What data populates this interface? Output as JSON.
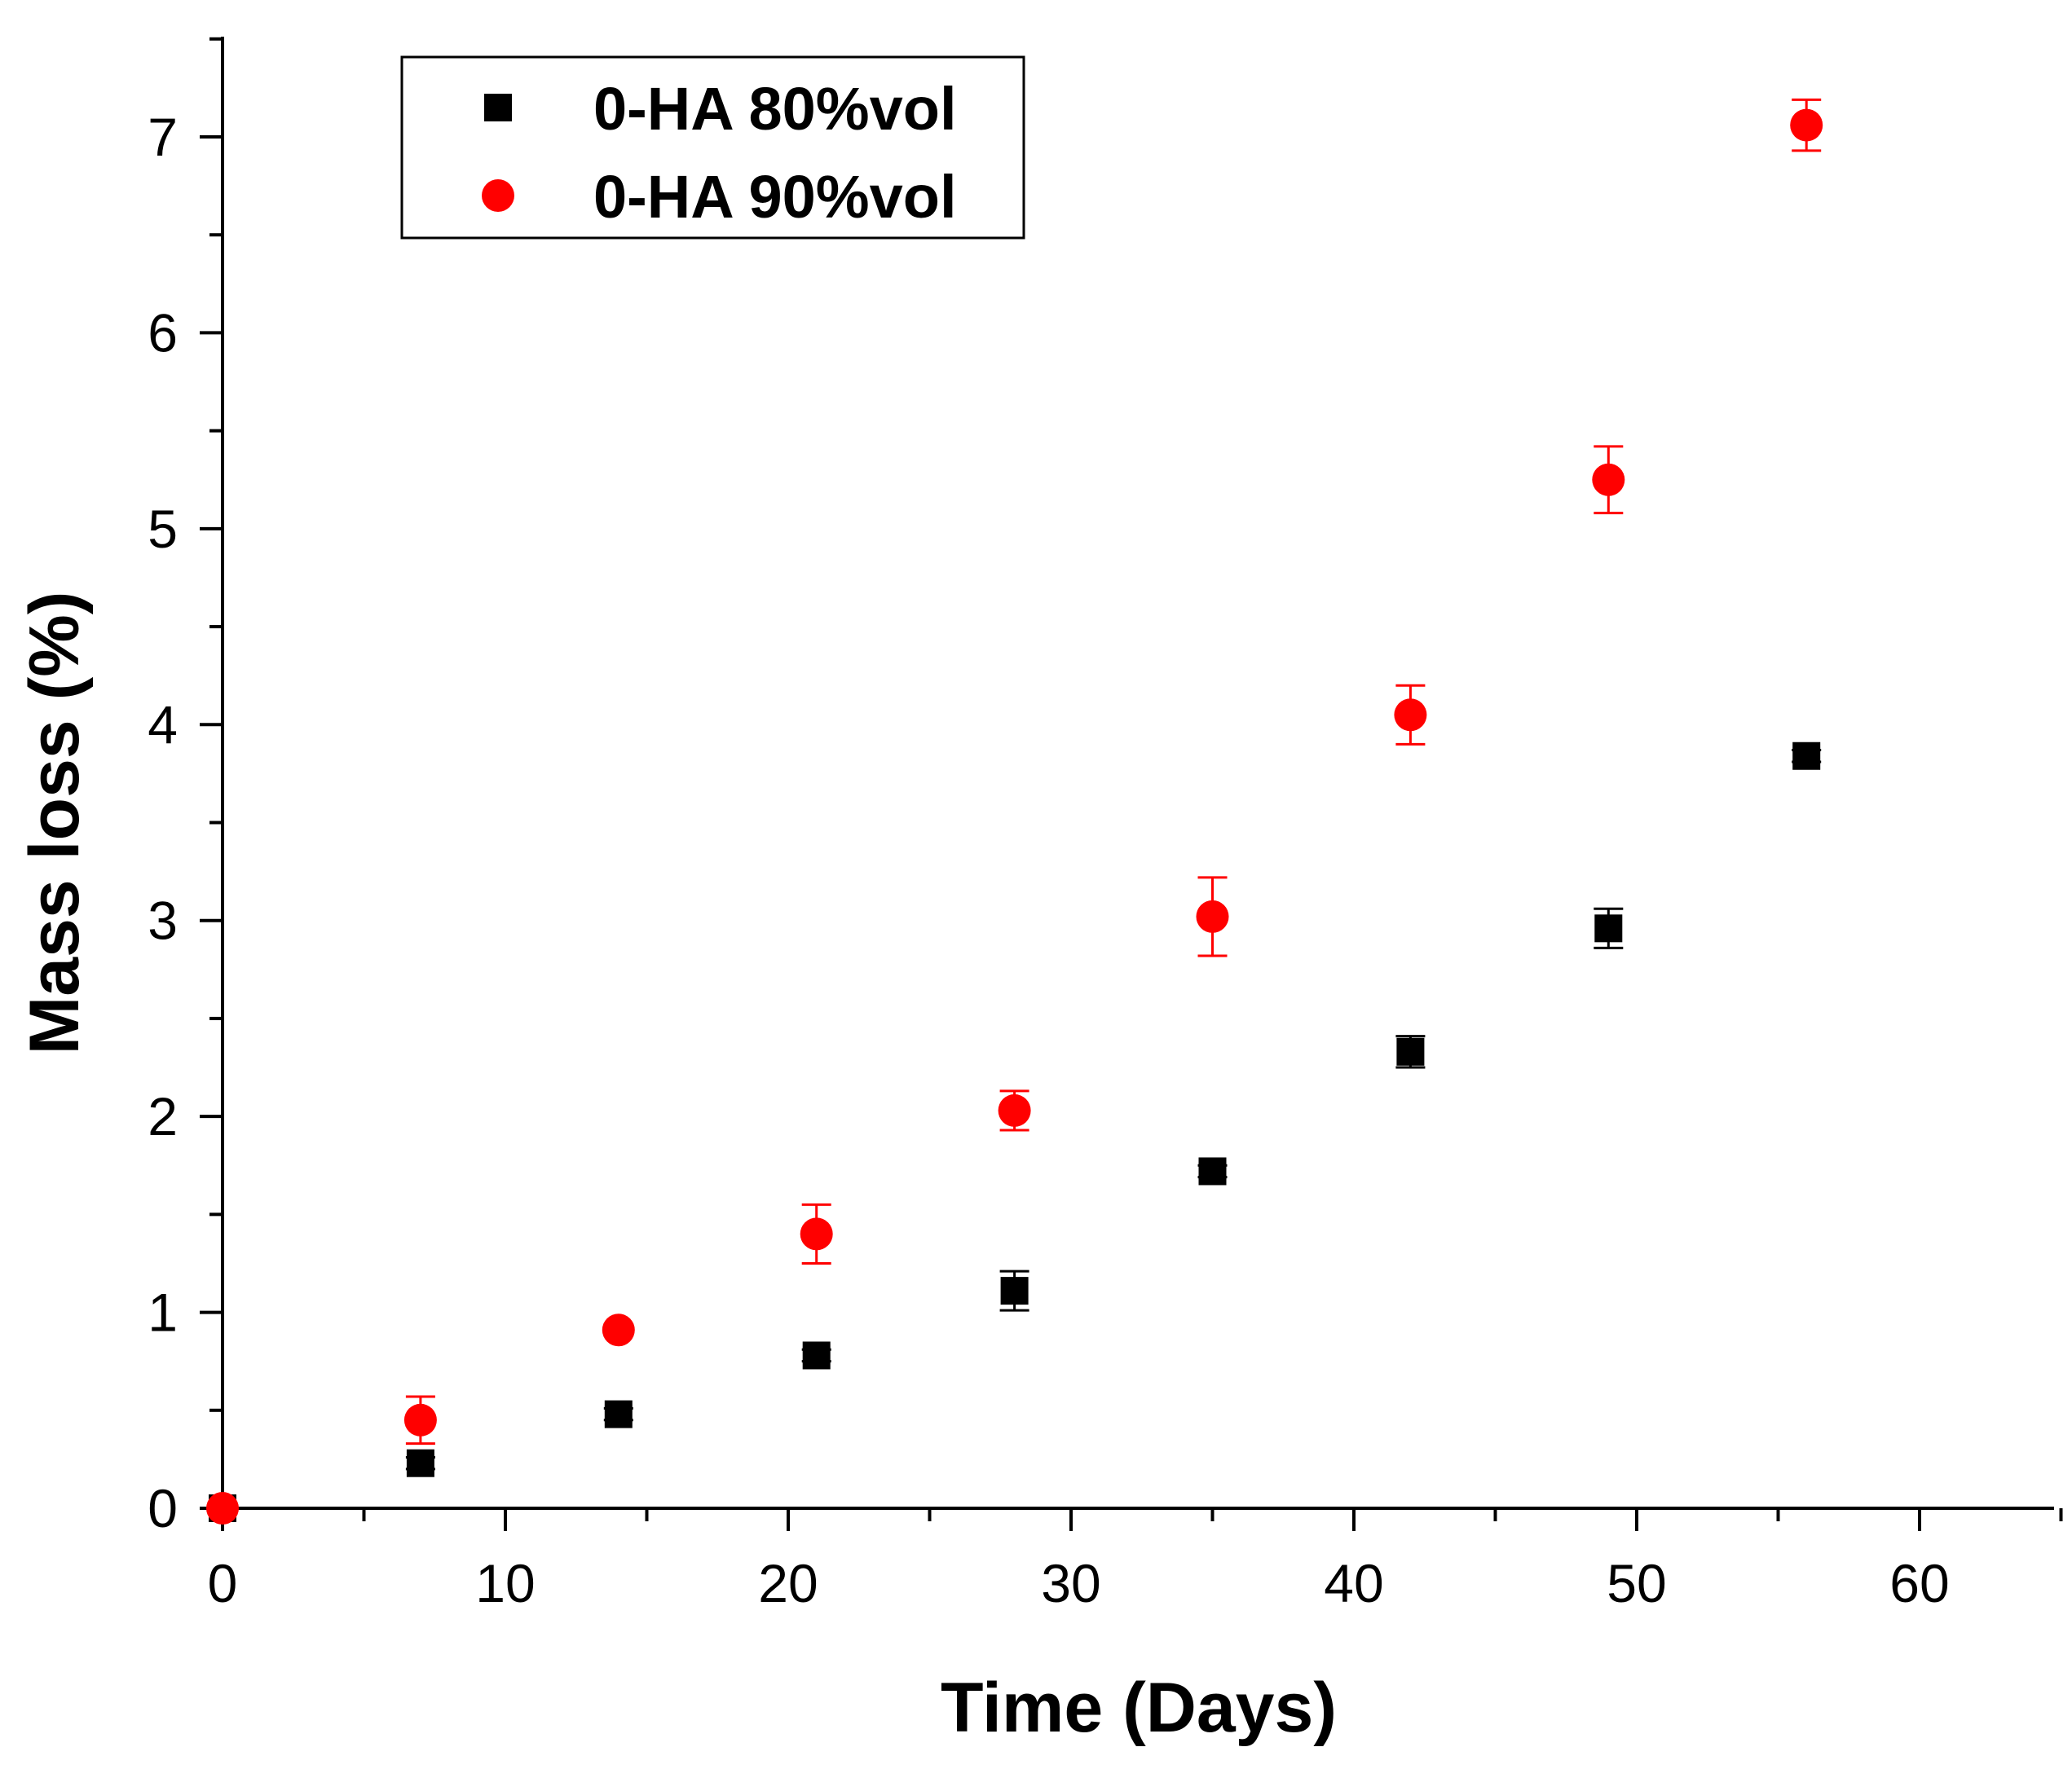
{
  "chart_data": {
    "type": "scatter",
    "title": "",
    "xlabel": "Time (Days)",
    "ylabel": "Mass loss (%)",
    "xlim": [
      0,
      65
    ],
    "ylim": [
      0,
      7.5
    ],
    "x_ticks": [
      0,
      10,
      20,
      30,
      40,
      50,
      60
    ],
    "x_tick_labels": [
      "0",
      "10",
      "20",
      "30",
      "40",
      "50",
      "60"
    ],
    "y_ticks": [
      0,
      1,
      2,
      3,
      4,
      5,
      6,
      7
    ],
    "y_tick_labels": [
      "0",
      "1",
      "2",
      "3",
      "4",
      "5",
      "6",
      "7"
    ],
    "grid": false,
    "legend_position": "top-left",
    "series": [
      {
        "name": "0-HA 80%vol",
        "marker": "square",
        "color": "#000000",
        "x": [
          0,
          7,
          14,
          21,
          28,
          35,
          42,
          49,
          56
        ],
        "y": [
          0,
          0.23,
          0.48,
          0.78,
          1.11,
          1.72,
          2.33,
          2.96,
          3.84
        ],
        "error": [
          0,
          0.03,
          0.03,
          0.03,
          0.1,
          0.03,
          0.08,
          0.1,
          0.03
        ]
      },
      {
        "name": "0-HA 90%vol",
        "marker": "circle",
        "color": "#ff0000",
        "x": [
          0,
          7,
          14,
          21,
          28,
          35,
          42,
          49,
          56
        ],
        "y": [
          0,
          0.45,
          0.91,
          1.4,
          2.03,
          3.02,
          4.05,
          5.25,
          7.06
        ],
        "error": [
          0,
          0.12,
          0.03,
          0.15,
          0.1,
          0.2,
          0.15,
          0.17,
          0.13
        ]
      }
    ]
  }
}
